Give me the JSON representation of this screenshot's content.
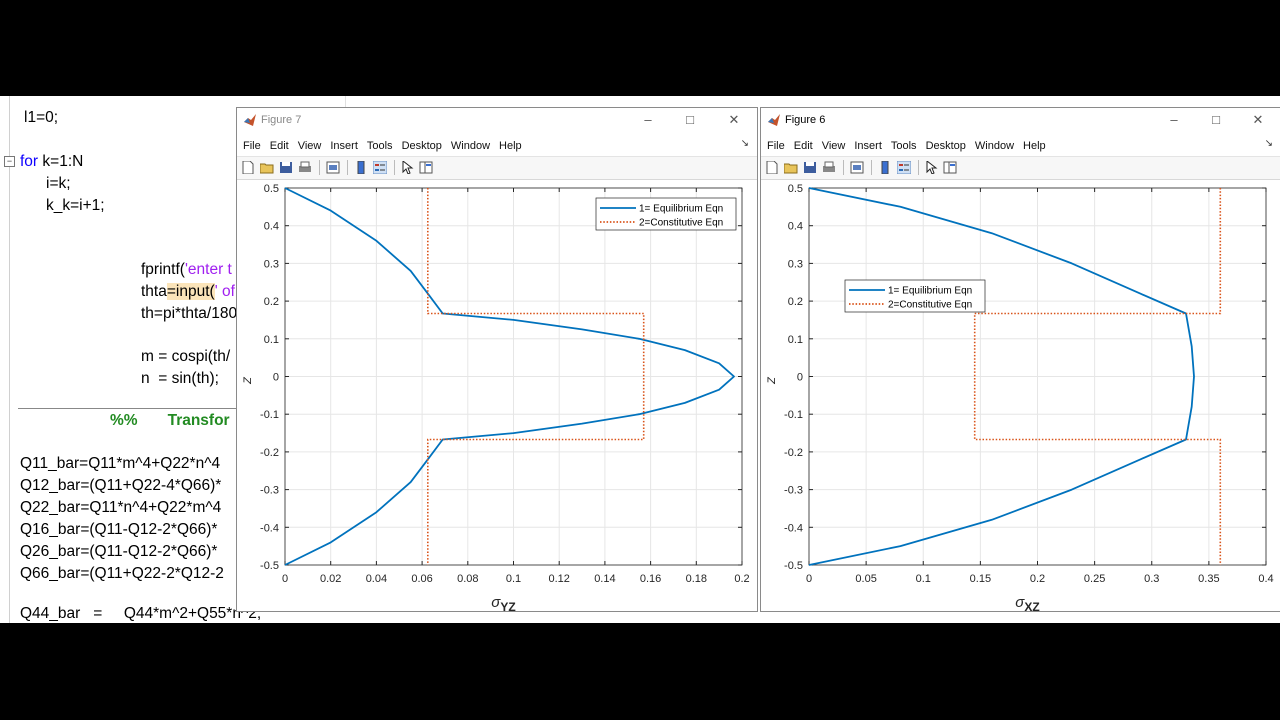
{
  "editor": {
    "lines": {
      "l1": "l1=0;",
      "for_kw": "for",
      "for_rest": " k=1:N",
      "i_eq": "i=k;",
      "kk": "k_k=i+1;",
      "fprintf_a": "fprintf(",
      "fprintf_str": "'enter t",
      "thta_a": "thta",
      "thta_b": "=input(",
      "thta_str": "' of",
      "th": "th=pi*thta/180",
      "m": "m = cospi(th/",
      "n": "n  = sin(th);",
      "cmt_pct": "%%",
      "cmt_text": "Transfor",
      "q11": "Q11_bar=Q11*m^4+Q22*n^4",
      "q12": "Q12_bar=(Q11+Q22-4*Q66)*",
      "q22": "Q22_bar=Q11*n^4+Q22*m^4",
      "q16": "Q16_bar=(Q11-Q12-2*Q66)*",
      "q26": "Q26_bar=(Q11-Q12-2*Q66)*",
      "q66": "Q66_bar=(Q11+Q22-2*Q12-2",
      "q44": "Q44_bar   =     Q44*m^2+Q55*n^2;"
    }
  },
  "menu_items": [
    "File",
    "Edit",
    "View",
    "Insert",
    "Tools",
    "Desktop",
    "Window",
    "Help"
  ],
  "fig7": {
    "title": "Figure 7",
    "xlabel_sym": "σ",
    "xlabel_sub": "YZ",
    "ylabel": "Z",
    "legend": [
      "1= Equilibrium Eqn",
      "2=Constitutive Eqn"
    ],
    "legend_position": "top-right"
  },
  "fig6": {
    "title": "Figure 6",
    "xlabel_sym": "σ",
    "xlabel_sub": "XZ",
    "ylabel": "Z",
    "legend": [
      "1= Equilibrium Eqn",
      "2=Constitutive Eqn"
    ],
    "legend_position": "upper-left"
  },
  "colors": {
    "equilibrium": "#0072bd",
    "constitutive": "#d95319",
    "grid": "#e6e6e6",
    "keyword": "#0e00ff",
    "string": "#a020f0",
    "comment": "#228b22"
  },
  "chart_data": [
    {
      "type": "line",
      "figure": "Figure 7",
      "xlabel": "σYZ",
      "ylabel": "Z",
      "xlim": [
        0,
        0.2
      ],
      "ylim": [
        -0.5,
        0.5
      ],
      "xticks": [
        "0",
        "0.02",
        "0.04",
        "0.06",
        "0.08",
        "0.1",
        "0.12",
        "0.14",
        "0.16",
        "0.18",
        "0.2"
      ],
      "yticks": [
        "0.5",
        "0.4",
        "0.3",
        "0.2",
        "0.1",
        "0",
        "-0.1",
        "-0.2",
        "-0.3",
        "-0.4",
        "-0.5"
      ],
      "grid": true,
      "series": [
        {
          "name": "1= Equilibrium Eqn",
          "style": "solid",
          "x": [
            0,
            0.02,
            0.04,
            0.055,
            0.0625,
            0.069,
            0.1,
            0.13,
            0.155,
            0.175,
            0.19,
            0.1965,
            0.19,
            0.175,
            0.155,
            0.13,
            0.1,
            0.069,
            0.0625,
            0.055,
            0.04,
            0.02,
            0
          ],
          "y": [
            0.5,
            0.44,
            0.36,
            0.28,
            0.22,
            0.167,
            0.15,
            0.125,
            0.1,
            0.07,
            0.035,
            0,
            -0.035,
            -0.07,
            -0.1,
            -0.125,
            -0.15,
            -0.167,
            -0.22,
            -0.28,
            -0.36,
            -0.44,
            -0.5
          ]
        },
        {
          "name": "2=Constitutive Eqn",
          "style": "dotted",
          "x": [
            0.0625,
            0.0625,
            0.157,
            0.157,
            0.0625,
            0.0625
          ],
          "y": [
            0.5,
            0.167,
            0.167,
            -0.167,
            -0.167,
            -0.5
          ]
        }
      ]
    },
    {
      "type": "line",
      "figure": "Figure 6",
      "xlabel": "σXZ",
      "ylabel": "Z",
      "xlim": [
        0,
        0.4
      ],
      "ylim": [
        -0.5,
        0.5
      ],
      "xticks": [
        "0",
        "0.05",
        "0.1",
        "0.15",
        "0.2",
        "0.25",
        "0.3",
        "0.35",
        "0.4"
      ],
      "yticks": [
        "0.5",
        "0.4",
        "0.3",
        "0.2",
        "0.1",
        "0",
        "-0.1",
        "-0.2",
        "-0.3",
        "-0.4",
        "-0.5"
      ],
      "grid": true,
      "series": [
        {
          "name": "1= Equilibrium Eqn",
          "style": "solid",
          "x": [
            0,
            0.08,
            0.16,
            0.23,
            0.29,
            0.33,
            0.335,
            0.337,
            0.335,
            0.33,
            0.29,
            0.23,
            0.16,
            0.08,
            0
          ],
          "y": [
            0.5,
            0.45,
            0.38,
            0.3,
            0.22,
            0.167,
            0.08,
            0,
            -0.08,
            -0.167,
            -0.22,
            -0.3,
            -0.38,
            -0.45,
            -0.5
          ]
        },
        {
          "name": "2=Constitutive Eqn",
          "style": "dotted",
          "x": [
            0.36,
            0.36,
            0.145,
            0.145,
            0.36,
            0.36
          ],
          "y": [
            0.5,
            0.167,
            0.167,
            -0.167,
            -0.167,
            -0.5
          ]
        }
      ]
    }
  ]
}
